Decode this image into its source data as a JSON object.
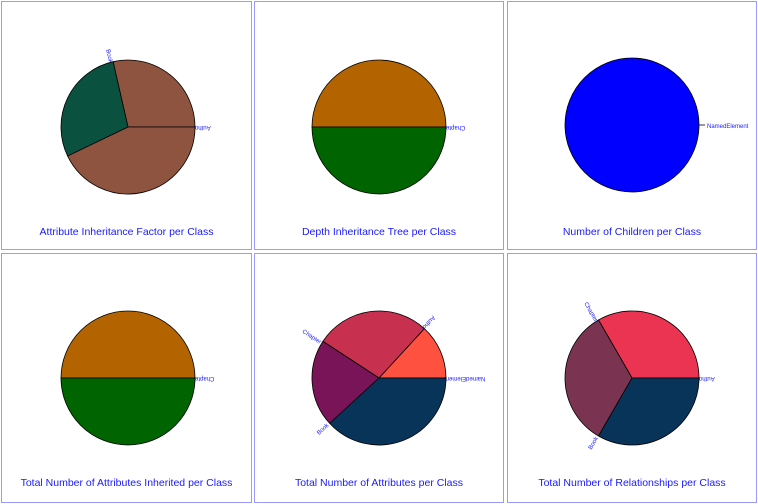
{
  "chart_data": [
    {
      "type": "pie",
      "title": "Attribute Inheritance Factor per Class",
      "slices": [
        {
          "label": "Author",
          "value": 1,
          "color": "#8f5440"
        },
        {
          "label": "Book",
          "value": 1,
          "color": "#0b5140"
        },
        {
          "label": "",
          "value": 1.5,
          "color": "#8f5440"
        }
      ]
    },
    {
      "type": "pie",
      "title": "Depth Inheritance Tree per Class",
      "slices": [
        {
          "label": "Chapter",
          "value": 1,
          "color": "#b36400"
        },
        {
          "label": "",
          "value": 1,
          "color": "#006400"
        }
      ]
    },
    {
      "type": "pie",
      "title": "Number of Children per Class",
      "slices": [
        {
          "label": "NamedElement",
          "value": 1,
          "color": "#0000ff"
        }
      ]
    },
    {
      "type": "pie",
      "title": "Total Number of Attributes Inherited per Class",
      "slices": [
        {
          "label": "Chapter",
          "value": 1,
          "color": "#b36400"
        },
        {
          "label": "",
          "value": 1,
          "color": "#006400"
        }
      ]
    },
    {
      "type": "pie",
      "title": "Total Number of Attributes per Class",
      "slices": [
        {
          "label": "NamedElement",
          "value": 1,
          "color": "#ff5040"
        },
        {
          "label": "Author",
          "value": 2.1,
          "color": "#c8304f"
        },
        {
          "label": "Chapter",
          "value": 1.6,
          "color": "#7a1458"
        },
        {
          "label": "Book",
          "value": 2.9,
          "color": "#08345a"
        }
      ]
    },
    {
      "type": "pie",
      "title": "Total Number of Relationships per Class",
      "slices": [
        {
          "label": "Author",
          "value": 1,
          "color": "#eb3452"
        },
        {
          "label": "Chapter",
          "value": 1,
          "color": "#7a3350"
        },
        {
          "label": "Book",
          "value": 1,
          "color": "#08345a"
        }
      ]
    }
  ]
}
